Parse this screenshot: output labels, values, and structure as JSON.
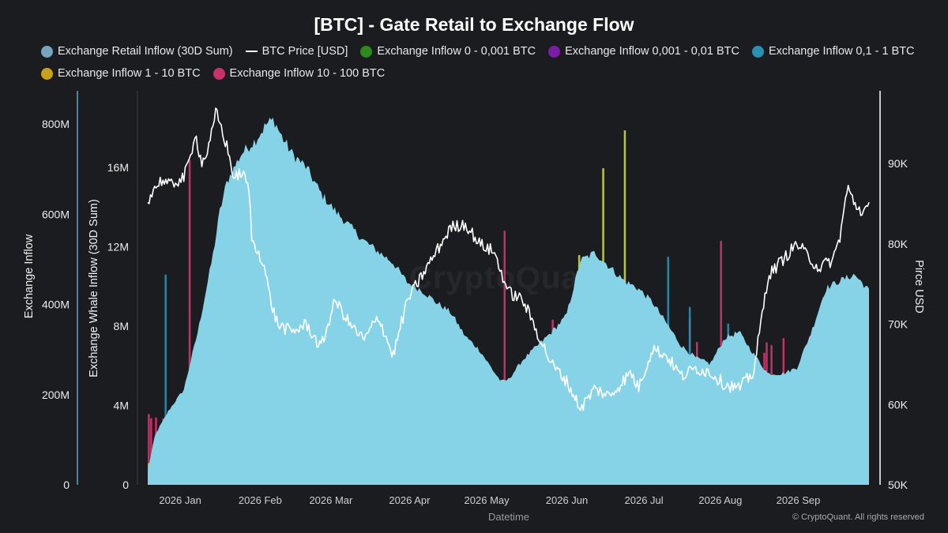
{
  "chart_data": {
    "type": "area",
    "title": "[BTC] - Gate Retail to Exchange Flow",
    "xlabel": "Datetime",
    "ylabel_left": "Exchange Inflow",
    "ylabel_left2": "Exchange Whale Inflow (30D Sum)",
    "ylabel_right": "Pirce USD",
    "x_ticks": [
      "2026 Jan",
      "2026 Feb",
      "2026 Mar",
      "2026 Apr",
      "2026 May",
      "2026 Jun",
      "2026 Jul",
      "2026 Aug",
      "2026 Sep"
    ],
    "y_ticks_left": [
      "0",
      "200M",
      "400M",
      "600M",
      "800M"
    ],
    "y_ticks_left2": [
      "0",
      "4M",
      "8M",
      "12M",
      "16M"
    ],
    "y_ticks_right": [
      "50K",
      "60K",
      "70K",
      "80K",
      "90K"
    ],
    "ylim_left": [
      0,
      920000000
    ],
    "ylim_left2": [
      0,
      18000000
    ],
    "ylim_right": [
      50000,
      97000
    ],
    "legend": [
      {
        "name": "Exchange Retail Inflow (30D Sum)",
        "marker": "dot",
        "color": "#76a5c0"
      },
      {
        "name": "BTC Price [USD]",
        "marker": "line",
        "color": "#ffffff"
      },
      {
        "name": "Exchange Inflow 0 - 0,001 BTC",
        "marker": "dot",
        "color": "#2f8a1e"
      },
      {
        "name": "Exchange Inflow 0,001 - 0,01 BTC",
        "marker": "dot",
        "color": "#7a1ea8"
      },
      {
        "name": "Exchange Inflow 0,1 - 1 BTC",
        "marker": "dot",
        "color": "#2b8fb0"
      },
      {
        "name": "Exchange Inflow 1 - 10 BTC",
        "marker": "dot",
        "color": "#c9a21c"
      },
      {
        "name": "Exchange Inflow 10 - 100 BTC",
        "marker": "dot",
        "color": "#c7326a"
      }
    ],
    "series": [
      {
        "name": "Exchange Retail Inflow (30D Sum)",
        "axis": "left2",
        "color": "#86d3e8",
        "t": [
          0,
          0.01,
          0.03,
          0.05,
          0.07,
          0.09,
          0.1,
          0.11,
          0.13,
          0.15,
          0.165,
          0.175,
          0.185,
          0.2,
          0.22,
          0.24,
          0.26,
          0.3,
          0.34,
          0.36,
          0.38,
          0.4,
          0.42,
          0.44,
          0.46,
          0.48,
          0.49,
          0.5,
          0.52,
          0.54,
          0.56,
          0.58,
          0.6,
          0.62,
          0.64,
          0.66,
          0.68,
          0.7,
          0.72,
          0.74,
          0.76,
          0.78,
          0.8,
          0.82,
          0.84,
          0.86,
          0.88,
          0.9,
          0.92,
          0.94,
          0.96,
          0.98,
          1.0
        ],
        "values": [
          700000,
          2500000,
          3800000,
          4800000,
          7800000,
          11500000,
          13800000,
          15300000,
          16700000,
          17400000,
          18200000,
          18400000,
          17600000,
          16700000,
          16000000,
          14700000,
          13800000,
          12300000,
          11200000,
          10200000,
          9800000,
          9200000,
          8700000,
          7500000,
          6800000,
          5700000,
          5200000,
          5300000,
          6300000,
          7000000,
          7700000,
          8500000,
          11300000,
          11700000,
          11000000,
          10300000,
          9900000,
          9200000,
          8100000,
          7000000,
          6400000,
          6100000,
          7400000,
          7700000,
          6600000,
          5600000,
          5600000,
          5900000,
          7700000,
          9900000,
          10300000,
          10600000,
          9800000
        ]
      },
      {
        "name": "BTC Price [USD]",
        "axis": "right",
        "color": "#ffffff",
        "t": [
          0,
          0.01,
          0.02,
          0.03,
          0.04,
          0.05,
          0.06,
          0.065,
          0.075,
          0.085,
          0.095,
          0.1,
          0.11,
          0.12,
          0.13,
          0.14,
          0.145,
          0.16,
          0.17,
          0.18,
          0.2,
          0.22,
          0.24,
          0.26,
          0.28,
          0.3,
          0.32,
          0.34,
          0.36,
          0.38,
          0.4,
          0.42,
          0.44,
          0.46,
          0.48,
          0.5,
          0.52,
          0.54,
          0.56,
          0.58,
          0.6,
          0.62,
          0.64,
          0.66,
          0.67,
          0.68,
          0.7,
          0.72,
          0.74,
          0.76,
          0.78,
          0.8,
          0.82,
          0.84,
          0.86,
          0.88,
          0.9,
          0.91,
          0.93,
          0.95,
          0.96,
          0.97,
          0.98,
          0.99,
          1.0
        ],
        "values": [
          85500,
          87000,
          88000,
          87200,
          87800,
          88200,
          91000,
          94000,
          90000,
          92000,
          96500,
          95000,
          92000,
          88000,
          89000,
          87000,
          80000,
          78000,
          73000,
          70000,
          69000,
          70000,
          67000,
          73000,
          70000,
          68000,
          71000,
          66000,
          73000,
          76000,
          79000,
          82000,
          82500,
          80000,
          79000,
          74000,
          73000,
          69000,
          65000,
          63000,
          59500,
          62000,
          61000,
          63000,
          64000,
          62000,
          67000,
          66000,
          63500,
          64500,
          64000,
          62500,
          62000,
          64000,
          76000,
          78000,
          80000,
          79000,
          77000,
          78000,
          81000,
          87000,
          85000,
          84000,
          84500
        ]
      }
    ],
    "inflow_bars": {
      "axis": "left",
      "bands": [
        {
          "name": "Exchange Inflow 10 - 100 BTC",
          "color": "#d2336d",
          "typical_max": 180000000,
          "spike_max": 740000000
        },
        {
          "name": "Exchange Inflow 1 - 10 BTC",
          "color": "#c6d24a",
          "typical_max": 100000000,
          "spike_max": 850000000
        },
        {
          "name": "Exchange Inflow 0,1 - 1 BTC",
          "color": "#2b8fb0",
          "typical_max": 60000000,
          "spike_max": 520000000
        },
        {
          "name": "Exchange Inflow 0,001 - 0,01 BTC",
          "color": "#7a1ea8",
          "typical_max": 10000000,
          "spike_max": 40000000
        },
        {
          "name": "Exchange Inflow 0 - 0,001 BTC",
          "color": "#2f8a1e",
          "typical_max": 5000000,
          "spike_max": 20000000
        }
      ]
    },
    "grid": false
  },
  "watermark": "CryptoQuant",
  "credit": "© CryptoQuant. All rights reserved"
}
